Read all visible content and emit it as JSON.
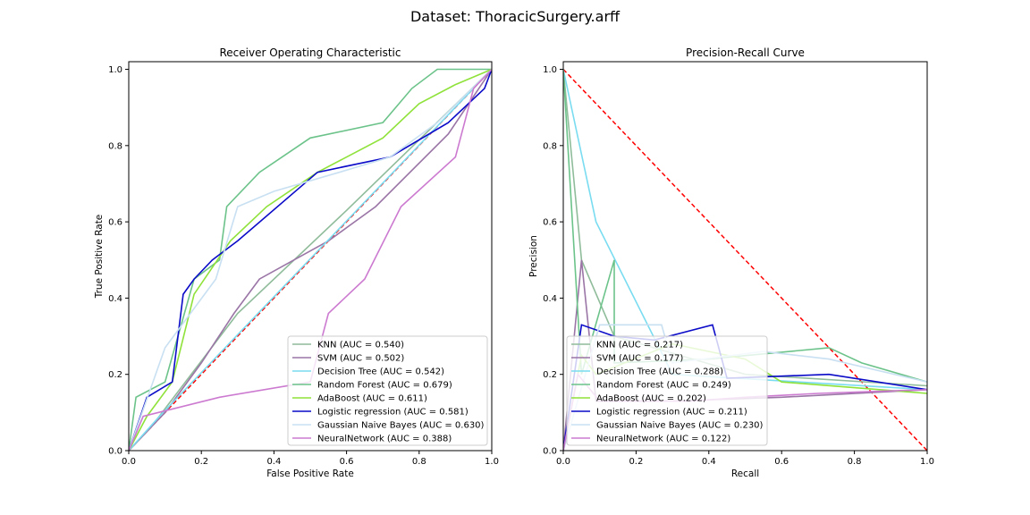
{
  "figure": {
    "suptitle": "Dataset: ThoracicSurgery.arff"
  },
  "chart_data": [
    {
      "type": "line",
      "title": "Receiver Operating Characteristic",
      "xlabel": "False Positive Rate",
      "ylabel": "True Positive Rate",
      "xlim": [
        0,
        1
      ],
      "ylim": [
        0,
        1.02
      ],
      "xticks": [
        "0.0",
        "0.2",
        "0.4",
        "0.6",
        "0.8",
        "1.0"
      ],
      "yticks": [
        "0.0",
        "0.2",
        "0.4",
        "0.6",
        "0.8",
        "1.0"
      ],
      "legend_position": "lower-right",
      "reference_line": {
        "color": "#ff0000",
        "style": "dashed",
        "points": [
          [
            0,
            0
          ],
          [
            1,
            1
          ]
        ]
      },
      "series": [
        {
          "name": "KNN (AUC = 0.540)",
          "color": "#8fbc9a",
          "points": [
            [
              0,
              0
            ],
            [
              0.02,
              0.02
            ],
            [
              0.06,
              0.06
            ],
            [
              0.3,
              0.36
            ],
            [
              0.6,
              0.63
            ],
            [
              1,
              1
            ]
          ]
        },
        {
          "name": "SVM (AUC = 0.502)",
          "color": "#9a75a6",
          "points": [
            [
              0,
              0
            ],
            [
              0.05,
              0.05
            ],
            [
              0.1,
              0.1
            ],
            [
              0.2,
              0.23
            ],
            [
              0.29,
              0.36
            ],
            [
              0.36,
              0.45
            ],
            [
              0.55,
              0.55
            ],
            [
              0.68,
              0.64
            ],
            [
              0.88,
              0.83
            ],
            [
              1,
              1
            ]
          ]
        },
        {
          "name": "Decision Tree (AUC = 0.542)",
          "color": "#7adcf0",
          "points": [
            [
              0,
              0
            ],
            [
              0.0857,
              0.0909
            ],
            [
              1,
              1
            ]
          ]
        },
        {
          "name": "Random Forest (AUC = 0.679)",
          "color": "#6cc38a",
          "points": [
            [
              0,
              0
            ],
            [
              0.02,
              0.14
            ],
            [
              0.1,
              0.18
            ],
            [
              0.18,
              0.45
            ],
            [
              0.25,
              0.5
            ],
            [
              0.27,
              0.64
            ],
            [
              0.36,
              0.73
            ],
            [
              0.5,
              0.82
            ],
            [
              0.7,
              0.86
            ],
            [
              0.78,
              0.95
            ],
            [
              0.85,
              1
            ],
            [
              1,
              1
            ]
          ]
        },
        {
          "name": "AdaBoost (AUC = 0.611)",
          "color": "#8fe23a",
          "points": [
            [
              0,
              0
            ],
            [
              0.05,
              0.09
            ],
            [
              0.12,
              0.18
            ],
            [
              0.18,
              0.41
            ],
            [
              0.28,
              0.55
            ],
            [
              0.38,
              0.64
            ],
            [
              0.52,
              0.73
            ],
            [
              0.7,
              0.82
            ],
            [
              0.8,
              0.91
            ],
            [
              0.9,
              0.96
            ],
            [
              1,
              1
            ]
          ]
        },
        {
          "name": "Logistic regression (AUC = 0.581)",
          "color": "#0a0ac8",
          "points": [
            [
              0,
              0
            ],
            [
              0.05,
              0.14
            ],
            [
              0.12,
              0.18
            ],
            [
              0.15,
              0.41
            ],
            [
              0.18,
              0.45
            ],
            [
              0.23,
              0.5
            ],
            [
              0.3,
              0.55
            ],
            [
              0.52,
              0.73
            ],
            [
              0.72,
              0.77
            ],
            [
              0.88,
              0.86
            ],
            [
              0.98,
              0.95
            ],
            [
              1,
              1
            ]
          ]
        },
        {
          "name": "Gaussian Naive Bayes (AUC = 0.630)",
          "color": "#c8e0f2",
          "points": [
            [
              0,
              0
            ],
            [
              0.1,
              0.27
            ],
            [
              0.24,
              0.45
            ],
            [
              0.3,
              0.64
            ],
            [
              0.4,
              0.68
            ],
            [
              0.58,
              0.73
            ],
            [
              0.72,
              0.77
            ],
            [
              0.85,
              0.86
            ],
            [
              1,
              1
            ]
          ]
        },
        {
          "name": "NeuralNetwork (AUC = 0.388)",
          "color": "#cc7ad0",
          "points": [
            [
              0,
              0
            ],
            [
              0.04,
              0.09
            ],
            [
              0.25,
              0.14
            ],
            [
              0.5,
              0.18
            ],
            [
              0.55,
              0.36
            ],
            [
              0.65,
              0.45
            ],
            [
              0.75,
              0.64
            ],
            [
              0.9,
              0.77
            ],
            [
              0.95,
              0.95
            ],
            [
              1,
              1
            ]
          ]
        }
      ]
    },
    {
      "type": "line",
      "title": "Precision-Recall Curve",
      "xlabel": "Recall",
      "ylabel": "Precision",
      "xlim": [
        0,
        1
      ],
      "ylim": [
        0,
        1.02
      ],
      "xticks": [
        "0.0",
        "0.2",
        "0.4",
        "0.6",
        "0.8",
        "1.0"
      ],
      "yticks": [
        "0.0",
        "0.2",
        "0.4",
        "0.6",
        "0.8",
        "1.0"
      ],
      "legend_position": "lower-left",
      "reference_line": {
        "color": "#ff0000",
        "style": "dashed",
        "points": [
          [
            0,
            1
          ],
          [
            1,
            0
          ]
        ]
      },
      "series": [
        {
          "name": "KNN (AUC = 0.217)",
          "color": "#8fbc9a",
          "points": [
            [
              0,
              1
            ],
            [
              0.05,
              0.5
            ],
            [
              0.14,
              0.3
            ],
            [
              0.5,
              0.2
            ],
            [
              1,
              0.17
            ]
          ]
        },
        {
          "name": "SVM (AUC = 0.177)",
          "color": "#9a75a6",
          "points": [
            [
              0,
              0
            ],
            [
              0.05,
              0.5
            ],
            [
              0.09,
              0.13
            ],
            [
              0.3,
              0.13
            ],
            [
              0.6,
              0.14
            ],
            [
              1,
              0.16
            ]
          ]
        },
        {
          "name": "Decision Tree (AUC = 0.288)",
          "color": "#7adcf0",
          "points": [
            [
              0,
              1
            ],
            [
              0.09,
              0.6
            ],
            [
              0.3,
              0.2
            ],
            [
              1,
              0.16
            ]
          ]
        },
        {
          "name": "Random Forest (AUC = 0.249)",
          "color": "#6cc38a",
          "points": [
            [
              0,
              1
            ],
            [
              0.05,
              0.2
            ],
            [
              0.14,
              0.5
            ],
            [
              0.14,
              0.23
            ],
            [
              0.4,
              0.24
            ],
            [
              0.73,
              0.27
            ],
            [
              0.82,
              0.23
            ],
            [
              1,
              0.18
            ]
          ]
        },
        {
          "name": "AdaBoost (AUC = 0.202)",
          "color": "#8fe23a",
          "points": [
            [
              0,
              0
            ],
            [
              0.05,
              0.25
            ],
            [
              0.09,
              0.2
            ],
            [
              0.3,
              0.28
            ],
            [
              0.5,
              0.24
            ],
            [
              0.6,
              0.18
            ],
            [
              1,
              0.15
            ]
          ]
        },
        {
          "name": "Logistic regression (AUC = 0.211)",
          "color": "#0a0ac8",
          "points": [
            [
              0,
              0
            ],
            [
              0.05,
              0.33
            ],
            [
              0.14,
              0.3
            ],
            [
              0.25,
              0.29
            ],
            [
              0.41,
              0.33
            ],
            [
              0.45,
              0.19
            ],
            [
              0.73,
              0.2
            ],
            [
              1,
              0.16
            ]
          ]
        },
        {
          "name": "Gaussian Naive Bayes (AUC = 0.230)",
          "color": "#c8e0f2",
          "points": [
            [
              0,
              0
            ],
            [
              0.1,
              0.33
            ],
            [
              0.27,
              0.33
            ],
            [
              0.3,
              0.23
            ],
            [
              0.55,
              0.26
            ],
            [
              0.73,
              0.24
            ],
            [
              1,
              0.18
            ]
          ]
        },
        {
          "name": "NeuralNetwork (AUC = 0.122)",
          "color": "#cc7ad0",
          "points": [
            [
              0,
              0
            ],
            [
              0.04,
              0.2
            ],
            [
              0.1,
              0.13
            ],
            [
              0.35,
              0.13
            ],
            [
              0.5,
              0.14
            ],
            [
              0.7,
              0.15
            ],
            [
              1,
              0.16
            ]
          ]
        }
      ]
    }
  ]
}
